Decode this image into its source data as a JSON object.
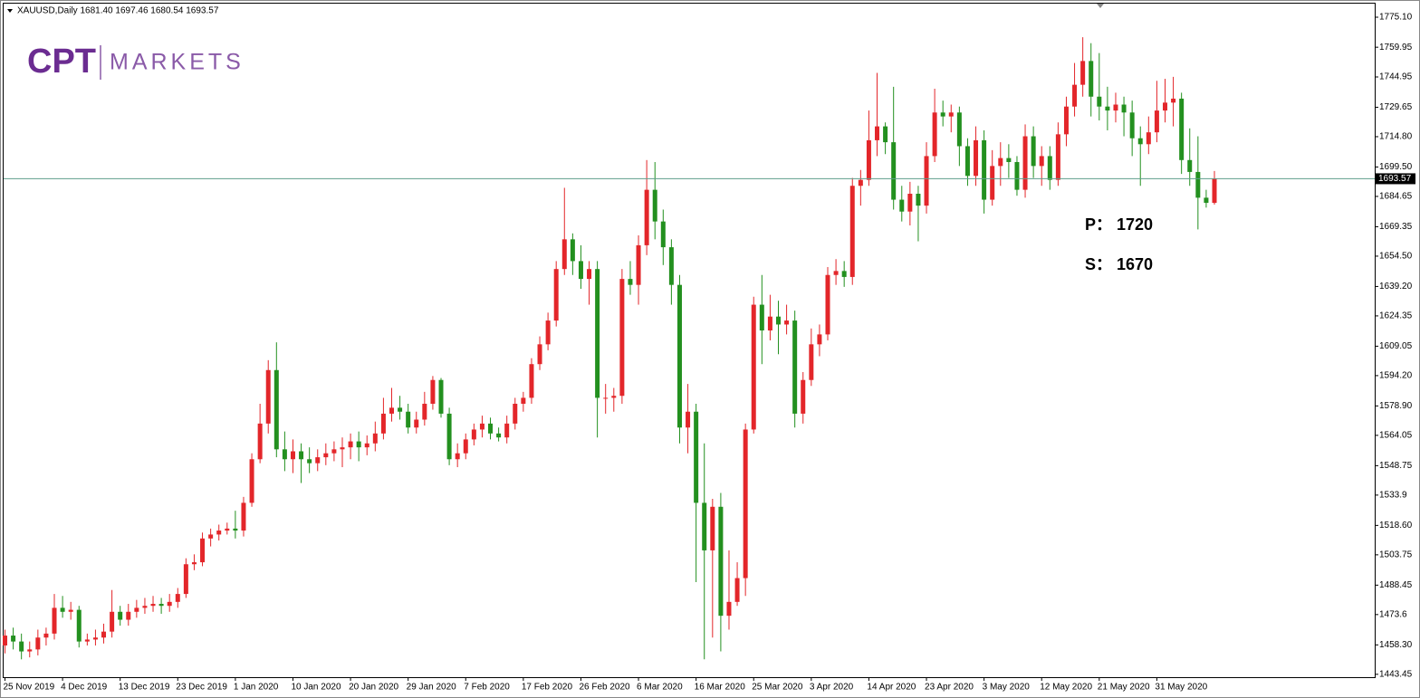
{
  "chart_data": {
    "type": "candlestick",
    "title": "XAUUSD,Daily  1681.40 1697.46 1680.54 1693.57",
    "logo": {
      "brand": "CPT",
      "name": "MARKETS"
    },
    "annotations": [
      "P：  1720",
      "S：  1670"
    ],
    "up_color": "#e3262a",
    "down_color": "#23901f",
    "price_line_color": "#5f9e8c",
    "ylim": [
      1442.0,
      1781.5
    ],
    "yticks": [
      {
        "value": 1775.1,
        "label": "1775.10"
      },
      1759.95,
      1744.95,
      1729.65,
      {
        "value": 1714.8,
        "label": "1714.80"
      },
      {
        "value": 1699.5,
        "label": "1699.50"
      },
      1684.65,
      1669.35,
      {
        "value": 1654.5,
        "label": "1654.50"
      },
      {
        "value": 1639.2,
        "label": "1639.20"
      },
      1624.35,
      1609.05,
      {
        "value": 1594.2,
        "label": "1594.20"
      },
      {
        "value": 1578.9,
        "label": "1578.90"
      },
      1564.05,
      1548.75,
      1533.9,
      {
        "value": 1518.6,
        "label": "1518.60"
      },
      1503.75,
      1488.45,
      1473.6,
      {
        "value": 1458.3,
        "label": "1458.30"
      },
      1443.45
    ],
    "categories": [
      "25 Nov 2019",
      null,
      null,
      null,
      null,
      null,
      null,
      "4 Dec 2019",
      null,
      null,
      null,
      null,
      null,
      null,
      "13 Dec 2019",
      null,
      null,
      null,
      null,
      null,
      null,
      "23 Dec 2019",
      null,
      null,
      null,
      null,
      null,
      null,
      "1 Jan 2020",
      null,
      null,
      null,
      null,
      null,
      null,
      "10 Jan 2020",
      null,
      null,
      null,
      null,
      null,
      null,
      "20 Jan 2020",
      null,
      null,
      null,
      null,
      null,
      null,
      "29 Jan 2020",
      null,
      null,
      null,
      null,
      null,
      null,
      "7 Feb 2020",
      null,
      null,
      null,
      null,
      null,
      null,
      "17 Feb 2020",
      null,
      null,
      null,
      null,
      null,
      null,
      "26 Feb 2020",
      null,
      null,
      null,
      null,
      null,
      null,
      "6 Mar 2020",
      null,
      null,
      null,
      null,
      null,
      null,
      "16 Mar 2020",
      null,
      null,
      null,
      null,
      null,
      null,
      "25 Mar 2020",
      null,
      null,
      null,
      null,
      null,
      null,
      "3 Apr 2020",
      null,
      null,
      null,
      null,
      null,
      null,
      "14 Apr 2020",
      null,
      null,
      null,
      null,
      null,
      null,
      "23 Apr 2020",
      null,
      null,
      null,
      null,
      null,
      null,
      "3 May 2020",
      null,
      null,
      null,
      null,
      null,
      null,
      "12 May 2020",
      null,
      null,
      null,
      null,
      null,
      null,
      "21 May 2020",
      null,
      null,
      null,
      null,
      null,
      null,
      "31 May 2020",
      null,
      null,
      null,
      null,
      null,
      null,
      null
    ],
    "ohlc": [
      [
        1458,
        1466,
        1454,
        1463
      ],
      [
        1463,
        1467,
        1456,
        1460
      ],
      [
        1460,
        1464,
        1451,
        1455
      ],
      [
        1455,
        1460,
        1452,
        1456
      ],
      [
        1456,
        1466,
        1453,
        1462
      ],
      [
        1462,
        1467,
        1458,
        1464
      ],
      [
        1464,
        1484,
        1461,
        1477
      ],
      [
        1477,
        1483,
        1472,
        1475
      ],
      [
        1475,
        1480,
        1471,
        1476
      ],
      [
        1476,
        1478,
        1457,
        1460
      ],
      [
        1460,
        1464,
        1458,
        1461
      ],
      [
        1461,
        1466,
        1458,
        1462
      ],
      [
        1462,
        1469,
        1459,
        1465
      ],
      [
        1465,
        1486,
        1462,
        1475
      ],
      [
        1475,
        1478,
        1468,
        1471
      ],
      [
        1471,
        1479,
        1468,
        1475
      ],
      [
        1475,
        1481,
        1472,
        1477
      ],
      [
        1477,
        1482,
        1474,
        1478
      ],
      [
        1478,
        1483,
        1475,
        1479
      ],
      [
        1479,
        1482,
        1474,
        1478
      ],
      [
        1478,
        1484,
        1475,
        1480
      ],
      [
        1480,
        1487,
        1477,
        1484
      ],
      [
        1484,
        1502,
        1482,
        1499
      ],
      [
        1499,
        1504,
        1496,
        1500
      ],
      [
        1500,
        1515,
        1498,
        1512
      ],
      [
        1512,
        1517,
        1508,
        1514
      ],
      [
        1514,
        1519,
        1511,
        1516
      ],
      [
        1516,
        1520,
        1514,
        1517
      ],
      [
        1517,
        1526,
        1512,
        1516
      ],
      [
        1516,
        1533,
        1513,
        1530
      ],
      [
        1530,
        1555,
        1528,
        1552
      ],
      [
        1552,
        1580,
        1550,
        1570
      ],
      [
        1570,
        1602,
        1565,
        1597
      ],
      [
        1597,
        1611,
        1553,
        1557
      ],
      [
        1557,
        1566,
        1546,
        1552
      ],
      [
        1552,
        1562,
        1545,
        1556
      ],
      [
        1556,
        1560,
        1540,
        1552
      ],
      [
        1552,
        1558,
        1545,
        1550
      ],
      [
        1550,
        1557,
        1546,
        1553
      ],
      [
        1553,
        1560,
        1549,
        1555
      ],
      [
        1555,
        1561,
        1551,
        1557
      ],
      [
        1557,
        1563,
        1548,
        1558
      ],
      [
        1558,
        1565,
        1552,
        1561
      ],
      [
        1561,
        1566,
        1551,
        1558
      ],
      [
        1558,
        1564,
        1554,
        1560
      ],
      [
        1560,
        1571,
        1556,
        1565
      ],
      [
        1565,
        1583,
        1562,
        1575
      ],
      [
        1575,
        1588,
        1571,
        1578
      ],
      [
        1578,
        1584,
        1572,
        1576
      ],
      [
        1576,
        1580,
        1565,
        1568
      ],
      [
        1568,
        1576,
        1565,
        1572
      ],
      [
        1572,
        1586,
        1569,
        1580
      ],
      [
        1580,
        1594,
        1577,
        1592
      ],
      [
        1592,
        1593,
        1573,
        1575
      ],
      [
        1575,
        1578,
        1549,
        1552
      ],
      [
        1552,
        1560,
        1548,
        1555
      ],
      [
        1555,
        1565,
        1552,
        1562
      ],
      [
        1562,
        1570,
        1559,
        1567
      ],
      [
        1567,
        1574,
        1563,
        1570
      ],
      [
        1570,
        1573,
        1562,
        1565
      ],
      [
        1565,
        1568,
        1561,
        1563
      ],
      [
        1563,
        1574,
        1560,
        1570
      ],
      [
        1570,
        1583,
        1567,
        1580
      ],
      [
        1580,
        1586,
        1576,
        1583
      ],
      [
        1583,
        1603,
        1580,
        1600
      ],
      [
        1600,
        1614,
        1597,
        1610
      ],
      [
        1610,
        1626,
        1607,
        1622
      ],
      [
        1622,
        1652,
        1619,
        1648
      ],
      [
        1648,
        1689,
        1645,
        1663
      ],
      [
        1663,
        1666,
        1645,
        1652
      ],
      [
        1652,
        1660,
        1638,
        1643
      ],
      [
        1643,
        1652,
        1630,
        1648
      ],
      [
        1648,
        1652,
        1563,
        1583
      ],
      [
        1583,
        1590,
        1575,
        1583
      ],
      [
        1583,
        1588,
        1576,
        1584
      ],
      [
        1584,
        1648,
        1580,
        1643
      ],
      [
        1643,
        1652,
        1635,
        1640
      ],
      [
        1640,
        1665,
        1630,
        1660
      ],
      [
        1660,
        1703,
        1655,
        1688
      ],
      [
        1688,
        1702,
        1663,
        1672
      ],
      [
        1672,
        1678,
        1650,
        1659
      ],
      [
        1659,
        1663,
        1630,
        1640
      ],
      [
        1640,
        1645,
        1560,
        1568
      ],
      [
        1568,
        1590,
        1555,
        1576
      ],
      [
        1576,
        1580,
        1490,
        1530
      ],
      [
        1530,
        1560,
        1451,
        1506
      ],
      [
        1506,
        1532,
        1462,
        1528
      ],
      [
        1528,
        1535,
        1455,
        1473
      ],
      [
        1473,
        1506,
        1466,
        1480
      ],
      [
        1480,
        1500,
        1478,
        1492
      ],
      [
        1492,
        1570,
        1483,
        1567
      ],
      [
        1567,
        1634,
        1565,
        1630
      ],
      [
        1630,
        1645,
        1600,
        1617
      ],
      [
        1617,
        1635,
        1612,
        1624
      ],
      [
        1624,
        1632,
        1605,
        1620
      ],
      [
        1620,
        1630,
        1615,
        1622
      ],
      [
        1622,
        1627,
        1568,
        1575
      ],
      [
        1575,
        1596,
        1570,
        1592
      ],
      [
        1592,
        1618,
        1589,
        1610
      ],
      [
        1610,
        1620,
        1604,
        1615
      ],
      [
        1615,
        1649,
        1612,
        1645
      ],
      [
        1645,
        1653,
        1640,
        1647
      ],
      [
        1647,
        1652,
        1639,
        1644
      ],
      [
        1644,
        1694,
        1640,
        1690
      ],
      [
        1690,
        1698,
        1680,
        1693
      ],
      [
        1693,
        1728,
        1690,
        1713
      ],
      [
        1713,
        1747,
        1705,
        1720
      ],
      [
        1720,
        1722,
        1706,
        1712
      ],
      [
        1712,
        1740,
        1678,
        1683
      ],
      [
        1683,
        1690,
        1672,
        1677
      ],
      [
        1677,
        1692,
        1670,
        1686
      ],
      [
        1686,
        1690,
        1662,
        1680
      ],
      [
        1680,
        1712,
        1676,
        1705
      ],
      [
        1705,
        1739,
        1702,
        1727
      ],
      [
        1727,
        1733,
        1720,
        1725
      ],
      [
        1725,
        1731,
        1717,
        1727
      ],
      [
        1727,
        1730,
        1700,
        1710
      ],
      [
        1710,
        1714,
        1690,
        1695
      ],
      [
        1695,
        1720,
        1690,
        1713
      ],
      [
        1713,
        1718,
        1676,
        1683
      ],
      [
        1683,
        1708,
        1680,
        1700
      ],
      [
        1700,
        1712,
        1690,
        1704
      ],
      [
        1704,
        1711,
        1694,
        1702
      ],
      [
        1702,
        1705,
        1685,
        1688
      ],
      [
        1688,
        1721,
        1684,
        1715
      ],
      [
        1715,
        1720,
        1694,
        1700
      ],
      [
        1700,
        1710,
        1690,
        1705
      ],
      [
        1705,
        1710,
        1688,
        1693
      ],
      [
        1693,
        1722,
        1690,
        1716
      ],
      [
        1716,
        1735,
        1710,
        1730
      ],
      [
        1730,
        1752,
        1725,
        1741
      ],
      [
        1741,
        1765,
        1735,
        1753
      ],
      [
        1753,
        1762,
        1725,
        1735
      ],
      [
        1735,
        1757,
        1723,
        1730
      ],
      [
        1730,
        1740,
        1718,
        1728
      ],
      [
        1728,
        1737,
        1722,
        1731
      ],
      [
        1731,
        1735,
        1715,
        1727
      ],
      [
        1727,
        1733,
        1705,
        1714
      ],
      [
        1714,
        1720,
        1690,
        1711
      ],
      [
        1711,
        1725,
        1706,
        1717
      ],
      [
        1717,
        1743,
        1712,
        1728
      ],
      [
        1728,
        1744,
        1722,
        1732
      ],
      [
        1732,
        1745,
        1720,
        1734
      ],
      [
        1734,
        1737,
        1696,
        1703
      ],
      [
        1703,
        1719,
        1690,
        1697
      ],
      [
        1697,
        1715,
        1668,
        1684
      ],
      [
        1684,
        1688,
        1679,
        1681.4
      ],
      [
        1681.4,
        1697.46,
        1680.54,
        1693.57
      ]
    ]
  }
}
